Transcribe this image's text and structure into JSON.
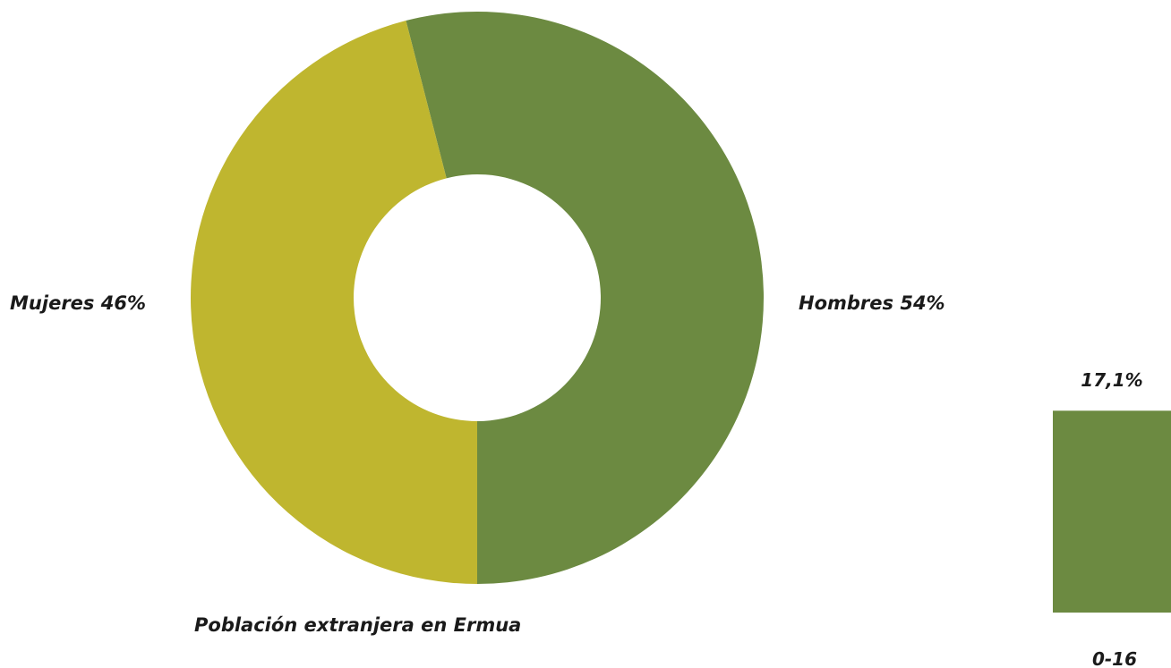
{
  "chart_data": [
    {
      "type": "pie",
      "subtype": "donut",
      "title": "Población extranjera en Ermua",
      "slices": [
        {
          "label": "Hombres 54%",
          "value": 54,
          "color": "#6c8a41"
        },
        {
          "label": "Mujeres 46%",
          "value": 46,
          "color": "#bfb62f"
        }
      ]
    },
    {
      "type": "bar",
      "categories": [
        "0-16"
      ],
      "values": [
        17.1
      ],
      "value_labels": [
        "17,1%"
      ],
      "color": "#6c8a41"
    }
  ]
}
